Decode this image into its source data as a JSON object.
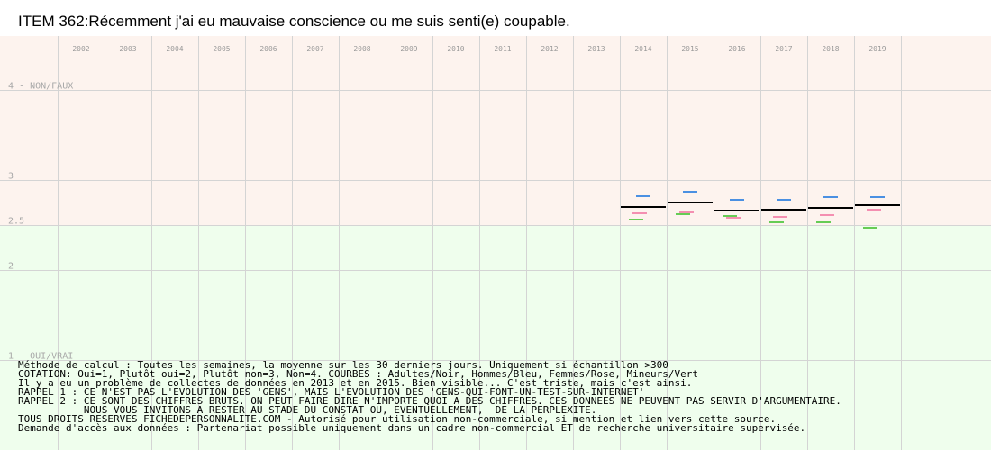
{
  "chart_data": {
    "type": "line",
    "title": "ITEM 362:Récemment j'ai eu mauvaise conscience ou me suis senti(e) coupable.",
    "x_years": [
      "2002",
      "2003",
      "2004",
      "2005",
      "2006",
      "2007",
      "2008",
      "2009",
      "2010",
      "2011",
      "2012",
      "2013",
      "2014",
      "2015",
      "2016",
      "2017",
      "2018",
      "2019"
    ],
    "y_tick_labels": [
      {
        "value": 4,
        "label": "4 - NON/FAUX"
      },
      {
        "value": 3,
        "label": "3"
      },
      {
        "value": 2.5,
        "label": "2.5"
      },
      {
        "value": 2,
        "label": "2"
      },
      {
        "value": 1,
        "label": "1 - OUI/VRAI"
      }
    ],
    "ylim": [
      1,
      4
    ],
    "grid": true,
    "background_bands": [
      {
        "from": 2.5,
        "to": 4,
        "color": "#fdf3ee"
      },
      {
        "from": 1,
        "to": 2.5,
        "color": "#effeed"
      }
    ],
    "series": [
      {
        "name": "Adultes",
        "color": "#000000",
        "values": [
          null,
          null,
          null,
          null,
          null,
          null,
          null,
          null,
          null,
          null,
          null,
          null,
          2.7,
          2.75,
          2.66,
          2.67,
          2.69,
          2.72
        ]
      },
      {
        "name": "Hommes",
        "color": "#4a90e2",
        "values": [
          null,
          null,
          null,
          null,
          null,
          null,
          null,
          null,
          null,
          null,
          null,
          null,
          2.82,
          2.87,
          2.78,
          2.78,
          2.81,
          2.81
        ]
      },
      {
        "name": "Femmes",
        "color": "#f48fb1",
        "values": [
          null,
          null,
          null,
          null,
          null,
          null,
          null,
          null,
          null,
          null,
          null,
          null,
          2.63,
          2.64,
          2.58,
          2.59,
          2.61,
          2.67
        ]
      },
      {
        "name": "Mineurs",
        "color": "#66cc55",
        "values": [
          null,
          null,
          null,
          null,
          null,
          null,
          null,
          null,
          null,
          null,
          null,
          null,
          2.56,
          2.62,
          2.6,
          2.53,
          2.53,
          2.47
        ]
      }
    ]
  },
  "notes": [
    "Méthode de calcul : Toutes les semaines, la moyenne sur les 30 derniers jours. Uniquement si échantillon >300",
    "COTATION: Oui=1, Plutôt oui=2, Plutôt non=3, Non=4. COURBES : Adultes/Noir, Hommes/Bleu, Femmes/Rose, Mineurs/Vert",
    "Il y a eu un problème de collectes de données en 2013 et en 2015. Bien visible... C'est triste, mais c'est ainsi.",
    "RAPPEL 1 : CE N'EST PAS L'EVOLUTION DES 'GENS', MAIS L'EVOLUTION DES 'GENS-QUI-FONT-UN-TEST-SUR-INTERNET'",
    "RAPPEL 2 : CE SONT DES CHIFFRES BRUTS. ON PEUT FAIRE DIRE N'IMPORTE QUOI A DES CHIFFRES. CES DONNEES NE PEUVENT PAS SERVIR D'ARGUMENTAIRE.",
    "           NOUS VOUS INVITONS A RESTER AU STADE DU CONSTAT OU, EVENTUELLEMENT,  DE LA PERPLEXITE.",
    "TOUS DROITS RESERVES FICHEDEPERSONNALITE.COM - Autorisé pour utilisation non-commerciale, si mention et lien vers cette source.",
    "Demande d'accès aux données : Partenariat possible uniquement dans un cadre non-commercial ET de recherche universitaire supervisée."
  ]
}
